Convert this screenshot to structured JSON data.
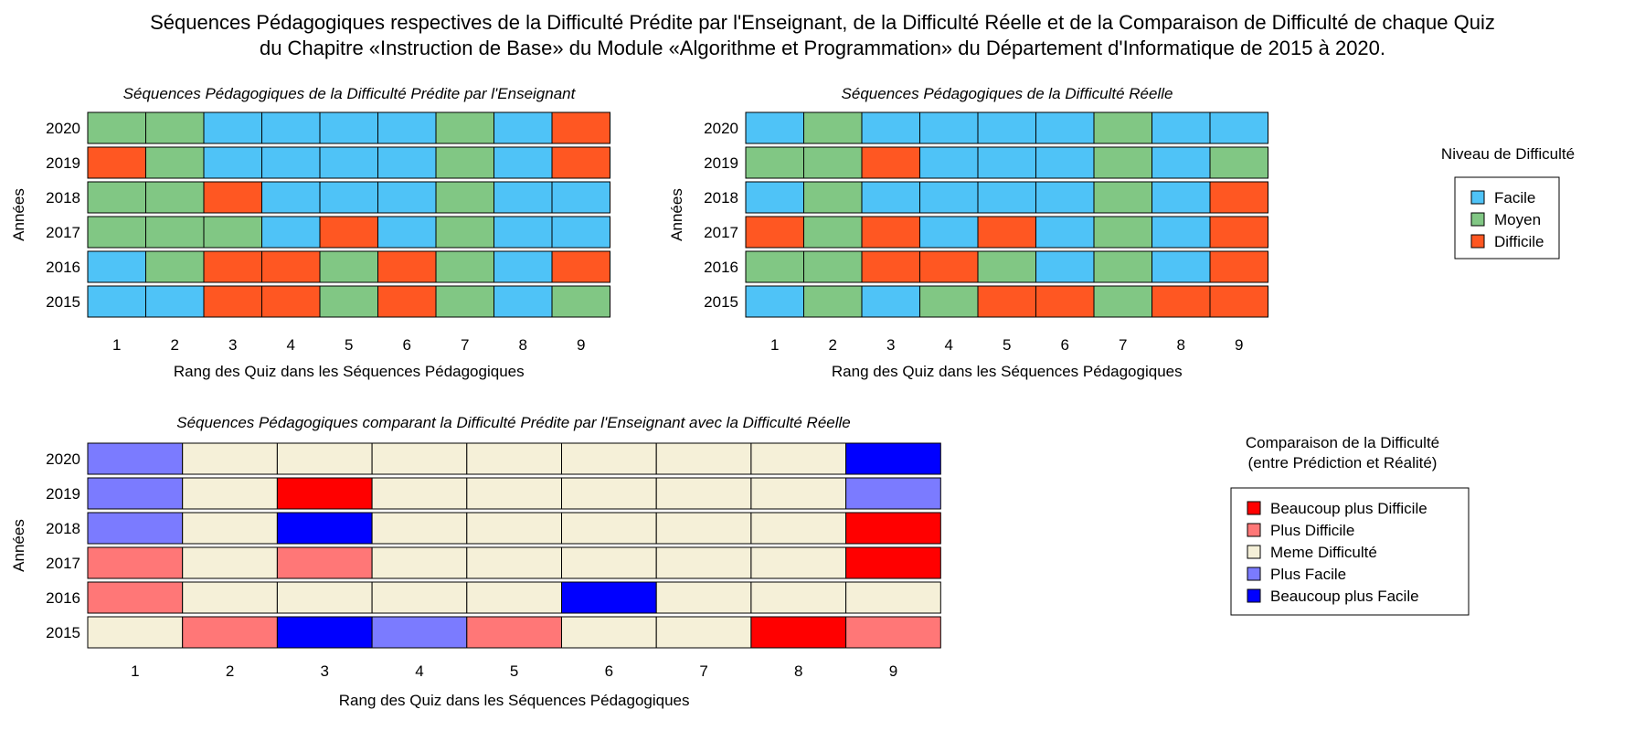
{
  "title_lines": [
    "Séquences Pédagogiques respectives de la Difficulté Prédite par l'Enseignant, de la Difficulté Réelle et de la Comparaison de Difficulté de chaque Quiz",
    "du Chapitre «Instruction de Base» du Module «Algorithme et Programmation» du Département d'Informatique de 2015 à 2020."
  ],
  "colors": {
    "Facile": "#4fc3f7",
    "Moyen": "#81c784",
    "Difficile": "#ff5722",
    "Beaucoup plus Difficile": "#ff0000",
    "Plus Difficile": "#ff7777",
    "Meme Difficulté": "#f5f0d8",
    "Plus Facile": "#7b7bff",
    "Beaucoup plus Facile": "#0000ff"
  },
  "legends": {
    "difficulty": {
      "title": [
        "Niveau de Difficulté"
      ],
      "items": [
        "Facile",
        "Moyen",
        "Difficile"
      ]
    },
    "comparison": {
      "title": [
        "Comparaison de la Difficulté",
        "(entre Prédiction et Réalité)"
      ],
      "items": [
        "Beaucoup plus Difficile",
        "Plus Difficile",
        "Meme Difficulté",
        "Plus Facile",
        "Beaucoup plus Facile"
      ]
    }
  },
  "chart_data": [
    {
      "type": "heatmap",
      "title": "Séquences Pédagogiques de la Difficulté Prédite par l'Enseignant",
      "xlabel": "Rang des Quiz dans les Séquences Pédagogiques",
      "ylabel": "Années",
      "x": [
        1,
        2,
        3,
        4,
        5,
        6,
        7,
        8,
        9
      ],
      "y": [
        "2020",
        "2019",
        "2018",
        "2017",
        "2016",
        "2015"
      ],
      "values": [
        [
          "Moyen",
          "Moyen",
          "Facile",
          "Facile",
          "Facile",
          "Facile",
          "Moyen",
          "Facile",
          "Difficile"
        ],
        [
          "Difficile",
          "Moyen",
          "Facile",
          "Facile",
          "Facile",
          "Facile",
          "Moyen",
          "Facile",
          "Difficile"
        ],
        [
          "Moyen",
          "Moyen",
          "Difficile",
          "Facile",
          "Facile",
          "Facile",
          "Moyen",
          "Facile",
          "Facile"
        ],
        [
          "Moyen",
          "Moyen",
          "Moyen",
          "Facile",
          "Difficile",
          "Facile",
          "Moyen",
          "Facile",
          "Facile"
        ],
        [
          "Facile",
          "Moyen",
          "Difficile",
          "Difficile",
          "Moyen",
          "Difficile",
          "Moyen",
          "Facile",
          "Difficile"
        ],
        [
          "Facile",
          "Facile",
          "Difficile",
          "Difficile",
          "Moyen",
          "Difficile",
          "Moyen",
          "Facile",
          "Moyen"
        ]
      ]
    },
    {
      "type": "heatmap",
      "title": "Séquences Pédagogiques de la Difficulté Réelle",
      "xlabel": "Rang des Quiz dans les Séquences Pédagogiques",
      "ylabel": "Années",
      "x": [
        1,
        2,
        3,
        4,
        5,
        6,
        7,
        8,
        9
      ],
      "y": [
        "2020",
        "2019",
        "2018",
        "2017",
        "2016",
        "2015"
      ],
      "values": [
        [
          "Facile",
          "Moyen",
          "Facile",
          "Facile",
          "Facile",
          "Facile",
          "Moyen",
          "Facile",
          "Facile"
        ],
        [
          "Moyen",
          "Moyen",
          "Difficile",
          "Facile",
          "Facile",
          "Facile",
          "Moyen",
          "Facile",
          "Moyen"
        ],
        [
          "Facile",
          "Moyen",
          "Facile",
          "Facile",
          "Facile",
          "Facile",
          "Moyen",
          "Facile",
          "Difficile"
        ],
        [
          "Difficile",
          "Moyen",
          "Difficile",
          "Facile",
          "Difficile",
          "Facile",
          "Moyen",
          "Facile",
          "Difficile"
        ],
        [
          "Moyen",
          "Moyen",
          "Difficile",
          "Difficile",
          "Moyen",
          "Facile",
          "Moyen",
          "Facile",
          "Difficile"
        ],
        [
          "Facile",
          "Moyen",
          "Facile",
          "Moyen",
          "Difficile",
          "Difficile",
          "Moyen",
          "Difficile",
          "Difficile"
        ]
      ]
    },
    {
      "type": "heatmap",
      "title": "Séquences Pédagogiques comparant la Difficulté Prédite par l'Enseignant avec la Difficulté Réelle",
      "xlabel": "Rang des Quiz dans les Séquences Pédagogiques",
      "ylabel": "Années",
      "x": [
        1,
        2,
        3,
        4,
        5,
        6,
        7,
        8,
        9
      ],
      "y": [
        "2020",
        "2019",
        "2018",
        "2017",
        "2016",
        "2015"
      ],
      "values": [
        [
          "Plus Facile",
          "Meme Difficulté",
          "Meme Difficulté",
          "Meme Difficulté",
          "Meme Difficulté",
          "Meme Difficulté",
          "Meme Difficulté",
          "Meme Difficulté",
          "Beaucoup plus Facile"
        ],
        [
          "Plus Facile",
          "Meme Difficulté",
          "Beaucoup plus Difficile",
          "Meme Difficulté",
          "Meme Difficulté",
          "Meme Difficulté",
          "Meme Difficulté",
          "Meme Difficulté",
          "Plus Facile"
        ],
        [
          "Plus Facile",
          "Meme Difficulté",
          "Beaucoup plus Facile",
          "Meme Difficulté",
          "Meme Difficulté",
          "Meme Difficulté",
          "Meme Difficulté",
          "Meme Difficulté",
          "Beaucoup plus Difficile"
        ],
        [
          "Plus Difficile",
          "Meme Difficulté",
          "Plus Difficile",
          "Meme Difficulté",
          "Meme Difficulté",
          "Meme Difficulté",
          "Meme Difficulté",
          "Meme Difficulté",
          "Beaucoup plus Difficile"
        ],
        [
          "Plus Difficile",
          "Meme Difficulté",
          "Meme Difficulté",
          "Meme Difficulté",
          "Meme Difficulté",
          "Beaucoup plus Facile",
          "Meme Difficulté",
          "Meme Difficulté",
          "Meme Difficulté"
        ],
        [
          "Meme Difficulté",
          "Plus Difficile",
          "Beaucoup plus Facile",
          "Plus Facile",
          "Plus Difficile",
          "Meme Difficulté",
          "Meme Difficulté",
          "Beaucoup plus Difficile",
          "Plus Difficile"
        ]
      ]
    }
  ]
}
